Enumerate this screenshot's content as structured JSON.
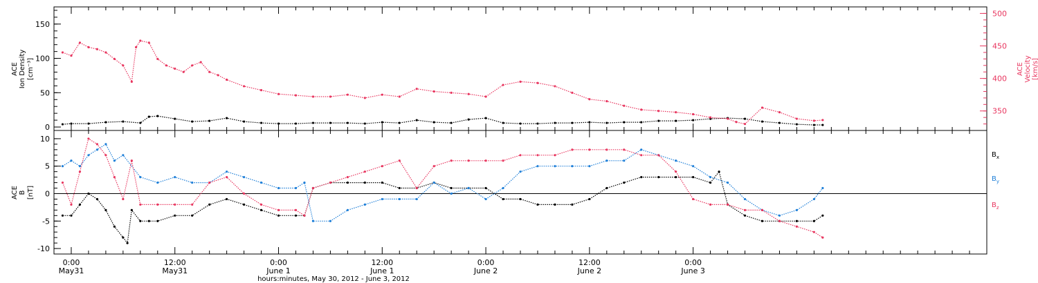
{
  "colors": {
    "density": "#000000",
    "velocity": "#e8365f",
    "bx": "#000000",
    "by": "#1e7fd8",
    "bz": "#e8365f"
  },
  "chart_data": [
    {
      "type": "scatter",
      "ylabel_left": [
        "ACE",
        "Ion Density",
        "[cm⁻³]"
      ],
      "ylabel_right": [
        "ACE",
        "Velocity",
        "[km/s]"
      ],
      "ylim_left": [
        -5,
        175
      ],
      "yticks_left": [
        0,
        50,
        100,
        150
      ],
      "ylim_right": [
        320,
        510
      ],
      "yticks_right": [
        350,
        400,
        450,
        500
      ],
      "series": [
        {
          "axis": "left",
          "color_key": "density",
          "x": [
            -1,
            0,
            2,
            4,
            6,
            8,
            9,
            10,
            12,
            14,
            16,
            18,
            20,
            22,
            24,
            26,
            28,
            30,
            32,
            34,
            36,
            38,
            40,
            42,
            44,
            46,
            48,
            50,
            52,
            54,
            56,
            58,
            60,
            62,
            64,
            66,
            68,
            70,
            72,
            74,
            76,
            78,
            80,
            82,
            84,
            86,
            87
          ],
          "y": [
            4,
            5,
            5,
            7,
            8,
            6,
            15,
            16,
            12,
            8,
            9,
            13,
            8,
            6,
            5,
            5,
            6,
            6,
            6,
            5,
            7,
            6,
            10,
            7,
            6,
            11,
            13,
            6,
            5,
            5,
            6,
            6,
            7,
            6,
            7,
            7,
            9,
            9,
            10,
            12,
            13,
            12,
            8,
            6,
            4,
            3,
            3
          ]
        },
        {
          "axis": "right",
          "color_key": "velocity",
          "x": [
            -1,
            0,
            1,
            2,
            3,
            4,
            5,
            6,
            7,
            7.5,
            8,
            9,
            10,
            11,
            12,
            13,
            14,
            15,
            16,
            17,
            18,
            20,
            22,
            24,
            26,
            28,
            30,
            32,
            34,
            36,
            38,
            40,
            42,
            44,
            46,
            48,
            50,
            52,
            54,
            56,
            58,
            60,
            62,
            64,
            66,
            68,
            70,
            72,
            74,
            76,
            77,
            78,
            80,
            82,
            84,
            86,
            87
          ],
          "y": [
            440,
            435,
            455,
            448,
            445,
            440,
            430,
            420,
            395,
            448,
            458,
            455,
            430,
            420,
            415,
            410,
            420,
            425,
            410,
            405,
            398,
            388,
            382,
            376,
            374,
            372,
            372,
            375,
            370,
            375,
            372,
            384,
            380,
            378,
            376,
            372,
            390,
            395,
            393,
            388,
            378,
            368,
            365,
            358,
            352,
            350,
            348,
            345,
            340,
            338,
            333,
            330,
            355,
            348,
            338,
            335,
            336
          ]
        }
      ]
    },
    {
      "type": "scatter",
      "ylabel": [
        "ACE",
        "B",
        "[nT]"
      ],
      "ylim": [
        -11,
        11.5
      ],
      "yticks": [
        -10,
        -5,
        0,
        5,
        10
      ],
      "legend": [
        "Bx",
        "By",
        "Bz"
      ],
      "legend_position": "right",
      "series": [
        {
          "name": "Bx",
          "color_key": "bx",
          "x": [
            -1,
            0,
            1,
            2,
            3,
            4,
            5,
            6,
            6.5,
            7,
            8,
            9,
            10,
            12,
            14,
            16,
            18,
            20,
            22,
            24,
            26,
            27,
            28,
            30,
            32,
            34,
            36,
            38,
            40,
            42,
            44,
            46,
            48,
            50,
            52,
            54,
            56,
            58,
            60,
            62,
            64,
            66,
            68,
            70,
            72,
            74,
            75,
            76,
            78,
            80,
            82,
            84,
            86,
            87
          ],
          "y": [
            -4,
            -4,
            -2,
            0,
            -1,
            -3,
            -6,
            -8,
            -9,
            -3,
            -5,
            -5,
            -5,
            -4,
            -4,
            -2,
            -1,
            -2,
            -3,
            -4,
            -4,
            -4,
            1,
            2,
            2,
            2,
            2,
            1,
            1,
            2,
            1,
            1,
            1,
            -1,
            -1,
            -2,
            -2,
            -2,
            -1,
            1,
            2,
            3,
            3,
            3,
            3,
            2,
            4,
            -2,
            -4,
            -5,
            -5,
            -5,
            -5,
            -4
          ]
        },
        {
          "name": "By",
          "color_key": "by",
          "x": [
            -1,
            0,
            1,
            2,
            3,
            4,
            5,
            6,
            8,
            10,
            12,
            14,
            16,
            18,
            20,
            22,
            24,
            26,
            27,
            28,
            30,
            32,
            34,
            36,
            38,
            40,
            42,
            44,
            46,
            48,
            50,
            52,
            54,
            56,
            58,
            60,
            62,
            64,
            66,
            68,
            70,
            72,
            74,
            76,
            78,
            80,
            82,
            84,
            86,
            87
          ],
          "y": [
            5,
            6,
            5,
            7,
            8,
            9,
            6,
            7,
            3,
            2,
            3,
            2,
            2,
            4,
            3,
            2,
            1,
            1,
            2,
            -5,
            -5,
            -3,
            -2,
            -1,
            -1,
            -1,
            2,
            0,
            1,
            -1,
            1,
            4,
            5,
            5,
            5,
            5,
            6,
            6,
            8,
            7,
            6,
            5,
            3,
            2,
            -1,
            -3,
            -4,
            -3,
            -1,
            1
          ]
        },
        {
          "name": "Bz",
          "color_key": "bz",
          "x": [
            -1,
            0,
            1,
            2,
            3,
            4,
            5,
            6,
            7,
            8,
            10,
            12,
            14,
            16,
            18,
            20,
            22,
            24,
            26,
            27,
            28,
            30,
            32,
            34,
            36,
            38,
            40,
            42,
            44,
            46,
            48,
            50,
            52,
            54,
            56,
            58,
            60,
            62,
            64,
            66,
            68,
            70,
            72,
            74,
            76,
            78,
            80,
            82,
            84,
            86,
            87
          ],
          "y": [
            2,
            -2,
            4,
            10,
            9,
            7,
            3,
            -1,
            6,
            -2,
            -2,
            -2,
            -2,
            2,
            3,
            0,
            -2,
            -3,
            -3,
            -4,
            1,
            2,
            3,
            4,
            5,
            6,
            1,
            5,
            6,
            6,
            6,
            6,
            7,
            7,
            7,
            8,
            8,
            8,
            8,
            7,
            7,
            4,
            -1,
            -2,
            -2,
            -3,
            -3,
            -5,
            -6,
            -7,
            -8
          ]
        }
      ]
    }
  ],
  "time_axis": {
    "xlim": [
      -2,
      106
    ],
    "ticks": [
      {
        "x": 0,
        "time": "0:00",
        "date": "May31"
      },
      {
        "x": 12,
        "time": "12:00",
        "date": "May31"
      },
      {
        "x": 24,
        "time": "0:00",
        "date": "June 1"
      },
      {
        "x": 36,
        "time": "12:00",
        "date": "June 1"
      },
      {
        "x": 48,
        "time": "0:00",
        "date": "June 2"
      },
      {
        "x": 60,
        "time": "12:00",
        "date": "June 2"
      },
      {
        "x": 72,
        "time": "0:00",
        "date": "June 3"
      }
    ],
    "minor_step": 2,
    "xlabel": "hours:minutes, May 30, 2012 - June  3, 2012"
  }
}
